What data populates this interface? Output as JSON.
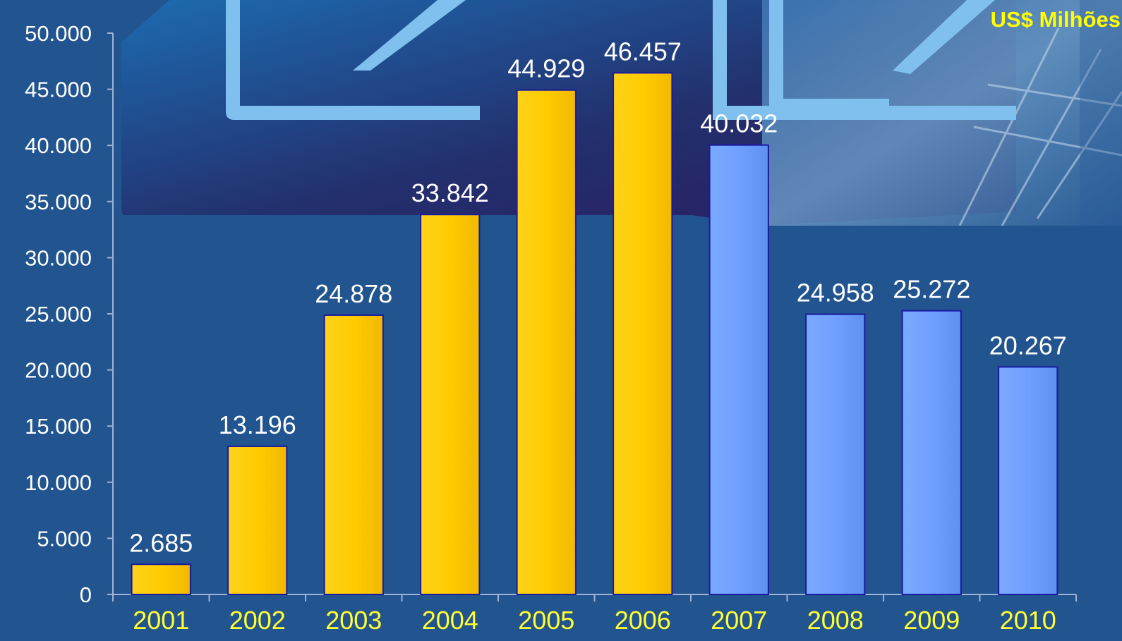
{
  "chart_data": {
    "type": "bar",
    "title": "",
    "unit_label": "US$ Milhões",
    "categories": [
      "2001",
      "2002",
      "2003",
      "2004",
      "2005",
      "2006",
      "2007",
      "2008",
      "2009",
      "2010"
    ],
    "values": [
      2685,
      13196,
      24878,
      33842,
      44929,
      46457,
      40032,
      24958,
      25272,
      20267
    ],
    "data_labels": [
      "2.685",
      "13.196",
      "24.878",
      "33.842",
      "44.929",
      "46.457",
      "40.032",
      "24.958",
      "25.272",
      "20.267"
    ],
    "bar_colors": [
      "#ffcc00",
      "#ffcc00",
      "#ffcc00",
      "#ffcc00",
      "#ffcc00",
      "#ffcc00",
      "#6fa0ff",
      "#6fa0ff",
      "#6fa0ff",
      "#6fa0ff"
    ],
    "ylim": [
      0,
      50000
    ],
    "yticks": [
      0,
      5000,
      10000,
      15000,
      20000,
      25000,
      30000,
      35000,
      40000,
      45000,
      50000
    ],
    "ytick_labels": [
      "0",
      "5.000",
      "10.000",
      "15.000",
      "20.000",
      "25.000",
      "30.000",
      "35.000",
      "40.000",
      "45.000",
      "50.000"
    ],
    "grid": false,
    "legend": "none",
    "colors": {
      "background": "#22548f",
      "bar_outline": "#1a1aa0",
      "axis": "#9fb4d8",
      "tick_text": "#ffffff",
      "category_text": "#ffff33",
      "unit_text": "#ffff00"
    }
  }
}
